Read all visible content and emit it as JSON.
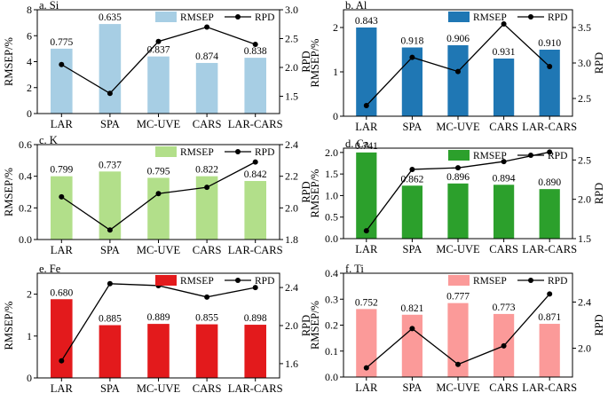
{
  "chart_data": [
    {
      "type": "bar",
      "title": "a. Si",
      "ylabel": "RMSEP/%",
      "y2label": "RPD",
      "color": "#a7cee4",
      "categories": [
        "LAR",
        "SPA",
        "MC-UVE",
        "CARS",
        "LAR-CARS"
      ],
      "series": [
        {
          "name": "RMSEP",
          "values": [
            5.0,
            6.9,
            4.4,
            3.9,
            4.3
          ]
        },
        {
          "name": "RPD",
          "values": [
            2.05,
            1.55,
            2.45,
            2.7,
            2.4
          ]
        }
      ],
      "data_labels": [
        "0.775",
        "0.635",
        "0.837",
        "0.874",
        "0.838"
      ],
      "ylim": [
        0,
        8
      ],
      "yticks": [
        "0",
        "2",
        "4",
        "6",
        "8"
      ],
      "y2lim": [
        1.2,
        3.0
      ],
      "y2ticks": [
        "1.5",
        "2.0",
        "2.5",
        "3.0"
      ],
      "legend": {
        "bar": "RMSEP",
        "line": "RPD"
      }
    },
    {
      "type": "bar",
      "title": "b. Al",
      "ylabel": "RMSEP/%",
      "y2label": "RPD",
      "color": "#1f77b4",
      "categories": [
        "LAR",
        "SPA",
        "MC-UVE",
        "CARS",
        "LAR-CARS"
      ],
      "series": [
        {
          "name": "RMSEP",
          "values": [
            2.0,
            1.55,
            1.6,
            1.3,
            1.5
          ]
        },
        {
          "name": "RPD",
          "values": [
            2.4,
            3.08,
            2.88,
            3.55,
            2.95
          ]
        }
      ],
      "data_labels": [
        "0.843",
        "0.918",
        "0.906",
        "0.931",
        "0.910"
      ],
      "ylim": [
        0,
        2.4
      ],
      "yticks": [
        "0",
        "1",
        "2"
      ],
      "y2lim": [
        2.25,
        3.75
      ],
      "y2ticks": [
        "2.5",
        "3.0",
        "3.5"
      ],
      "legend": {
        "bar": "RMSEP",
        "line": "RPD"
      }
    },
    {
      "type": "bar",
      "title": "c. K",
      "ylabel": "RMSEP/%",
      "y2label": "RPD",
      "color": "#b2df8a",
      "categories": [
        "LAR",
        "SPA",
        "MC-UVE",
        "CARS",
        "LAR-CARS"
      ],
      "series": [
        {
          "name": "RMSEP",
          "values": [
            0.4,
            0.43,
            0.39,
            0.4,
            0.37
          ]
        },
        {
          "name": "RPD",
          "values": [
            2.07,
            1.86,
            2.09,
            2.13,
            2.29
          ]
        }
      ],
      "data_labels": [
        "0.799",
        "0.737",
        "0.795",
        "0.822",
        "0.842"
      ],
      "ylim": [
        0,
        0.6
      ],
      "yticks": [
        "0.0",
        "0.2",
        "0.4",
        "0.6"
      ],
      "y2lim": [
        1.8,
        2.4
      ],
      "y2ticks": [
        "1.8",
        "2.0",
        "2.2",
        "2.4"
      ],
      "legend": {
        "bar": "RMSEP",
        "line": "RPD"
      }
    },
    {
      "type": "bar",
      "title": "d. Ca",
      "ylabel": "RMSEP/%",
      "y2label": "RPD",
      "color": "#2ca02c",
      "categories": [
        "LAR",
        "SPA",
        "MC-UVE",
        "CARS",
        "LAR-CARS"
      ],
      "series": [
        {
          "name": "RMSEP",
          "values": [
            2.0,
            1.23,
            1.28,
            1.25,
            1.15
          ]
        },
        {
          "name": "RPD",
          "values": [
            1.6,
            2.38,
            2.4,
            2.48,
            2.6
          ]
        }
      ],
      "data_labels": [
        "0.741",
        "0.862",
        "0.896",
        "0.894",
        "0.890"
      ],
      "ylim": [
        0,
        2.1
      ],
      "yticks": [
        "0.0",
        "0.5",
        "1.0",
        "1.5",
        "2.0"
      ],
      "y2lim": [
        1.5,
        2.65
      ],
      "y2ticks": [
        "1.5",
        "2.0",
        "2.5"
      ],
      "legend": {
        "bar": "RMSEP",
        "line": "RPD"
      }
    },
    {
      "type": "bar",
      "title": "e. Fe",
      "ylabel": "RMSEP/%",
      "y2label": "RPD",
      "color": "#e31a1c",
      "categories": [
        "LAR",
        "SPA",
        "MC-UVE",
        "CARS",
        "LAR-CARS"
      ],
      "series": [
        {
          "name": "RMSEP",
          "values": [
            1.88,
            1.26,
            1.29,
            1.28,
            1.27
          ]
        },
        {
          "name": "RPD",
          "values": [
            1.63,
            2.44,
            2.42,
            2.3,
            2.4
          ]
        }
      ],
      "data_labels": [
        "0.680",
        "0.885",
        "0.889",
        "0.855",
        "0.898"
      ],
      "ylim": [
        0,
        2.5
      ],
      "yticks": [
        "0",
        "1",
        "2"
      ],
      "y2lim": [
        1.45,
        2.55
      ],
      "y2ticks": [
        "1.6",
        "2.0",
        "2.4"
      ],
      "legend": {
        "bar": "RMSEP",
        "line": "RPD"
      }
    },
    {
      "type": "bar",
      "title": "f. Ti",
      "ylabel": "RMSEP/%",
      "y2label": "RPD",
      "color": "#fb9a99",
      "categories": [
        "LAR",
        "SPA",
        "MC-UVE",
        "CARS",
        "LAR-CARS"
      ],
      "series": [
        {
          "name": "RMSEP",
          "values": [
            0.262,
            0.24,
            0.285,
            0.243,
            0.205
          ]
        },
        {
          "name": "RPD",
          "values": [
            1.83,
            2.17,
            1.86,
            2.02,
            2.47
          ]
        }
      ],
      "data_labels": [
        "0.752",
        "0.821",
        "0.777",
        "0.773",
        "0.871"
      ],
      "ylim": [
        0,
        0.4
      ],
      "yticks": [
        "0.0",
        "0.1",
        "0.2",
        "0.3",
        "0.4"
      ],
      "y2lim": [
        1.75,
        2.65
      ],
      "y2ticks": [
        "2.0",
        "2.4"
      ],
      "legend": {
        "bar": "RMSEP",
        "line": "RPD"
      }
    }
  ]
}
